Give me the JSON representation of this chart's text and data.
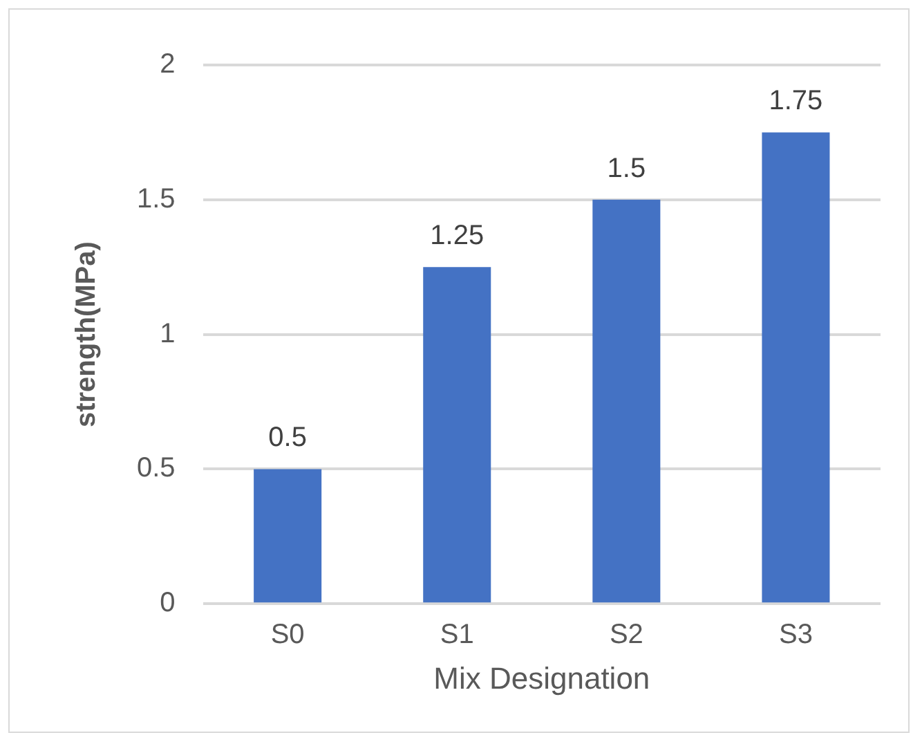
{
  "chart_data": {
    "type": "bar",
    "xlabel": "Mix Designation",
    "ylabel": "strength(MPa)",
    "categories": [
      "S0",
      "S1",
      "S2",
      "S3"
    ],
    "values": [
      0.5,
      1.25,
      1.5,
      1.75
    ],
    "color": "#4472c4",
    "ylim": [
      0,
      2
    ],
    "yticks": [
      0,
      0.5,
      1,
      1.5,
      2
    ],
    "grid": "y",
    "data_labels": true,
    "legend": false
  }
}
